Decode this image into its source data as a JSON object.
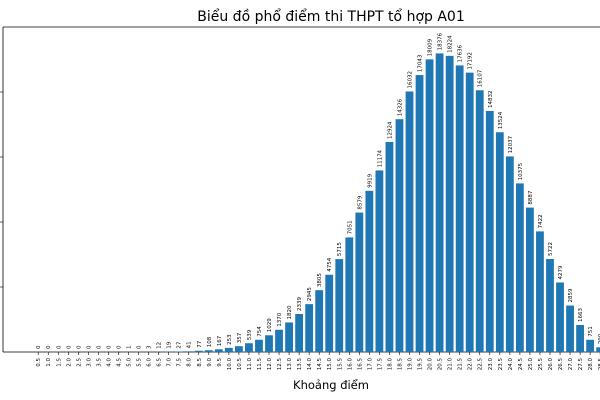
{
  "chart_data": {
    "type": "bar",
    "title": "Biểu đồ phổ điểm thi THPT tổ hợp A01",
    "xlabel": "Khoảng điểm",
    "ylabel": "",
    "ylim": [
      0,
      20000
    ],
    "color": "#1f77b4",
    "categories": [
      "0.5",
      "1.0",
      "1.5",
      "2.0",
      "2.5",
      "3.0",
      "3.5",
      "4.0",
      "4.5",
      "5.0",
      "5.5",
      "6.0",
      "6.5",
      "7.0",
      "7.5",
      "8.0",
      "8.5",
      "9.0",
      "9.5",
      "10.0",
      "10.5",
      "11.0",
      "11.5",
      "12.0",
      "12.5",
      "13.0",
      "13.5",
      "14.0",
      "14.5",
      "15.0",
      "15.5",
      "16.0",
      "16.5",
      "17.0",
      "17.5",
      "18.0",
      "18.5",
      "19.0",
      "19.5",
      "20.0",
      "20.5",
      "21.0",
      "21.5",
      "22.0",
      "22.5",
      "23.0",
      "23.5",
      "24.0",
      "24.5",
      "25.0",
      "25.5",
      "26.0",
      "26.5",
      "27.0",
      "27.5",
      "28.0",
      "28.5"
    ],
    "values": [
      0,
      0,
      0,
      0,
      0,
      0,
      0,
      0,
      0,
      1,
      0,
      3,
      12,
      19,
      27,
      41,
      77,
      108,
      167,
      253,
      357,
      539,
      754,
      1029,
      1370,
      1820,
      2339,
      2945,
      3805,
      4754,
      5715,
      7051,
      8579,
      9919,
      11174,
      12924,
      14326,
      16032,
      17043,
      18009,
      18376,
      18224,
      17636,
      17192,
      16107,
      14832,
      13524,
      12037,
      10375,
      8887,
      7422,
      5722,
      4279,
      2859,
      1663,
      751,
      290
    ]
  }
}
